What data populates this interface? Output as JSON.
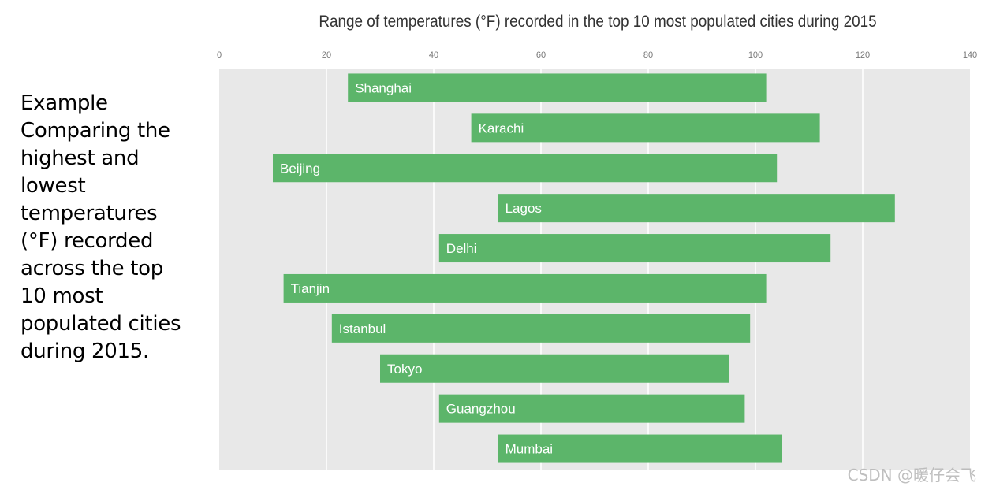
{
  "description_lines": [
    "Example",
    "Comparing the",
    "highest and",
    "lowest",
    "temperatures",
    "(°F) recorded",
    "across the top",
    "10 most",
    "populated cities",
    "during 2015."
  ],
  "watermark": "CSDN @暖仔会飞",
  "colors": {
    "bar": "#5cb56a",
    "plot_bg": "#e8e8e8",
    "grid": "#ffffff"
  },
  "chart_data": {
    "type": "bar",
    "orientation": "horizontal",
    "range_bars": true,
    "title": "Range of temperatures (°F) recorded in the top 10 most populated cities during 2015",
    "xlabel": "",
    "ylabel": "",
    "xlim": [
      0,
      140
    ],
    "x_ticks": [
      0,
      20,
      40,
      60,
      80,
      100,
      120,
      140
    ],
    "x_axis_position": "top",
    "grid": true,
    "categories": [
      "Shanghai",
      "Karachi",
      "Beijing",
      "Lagos",
      "Delhi",
      "Tianjin",
      "Istanbul",
      "Tokyo",
      "Guangzhou",
      "Mumbai"
    ],
    "series": [
      {
        "low": [
          24,
          47,
          10,
          52,
          41,
          12,
          21,
          30,
          41,
          52
        ],
        "high": [
          102,
          112,
          104,
          126,
          114,
          102,
          99,
          95,
          98,
          105
        ]
      }
    ]
  }
}
